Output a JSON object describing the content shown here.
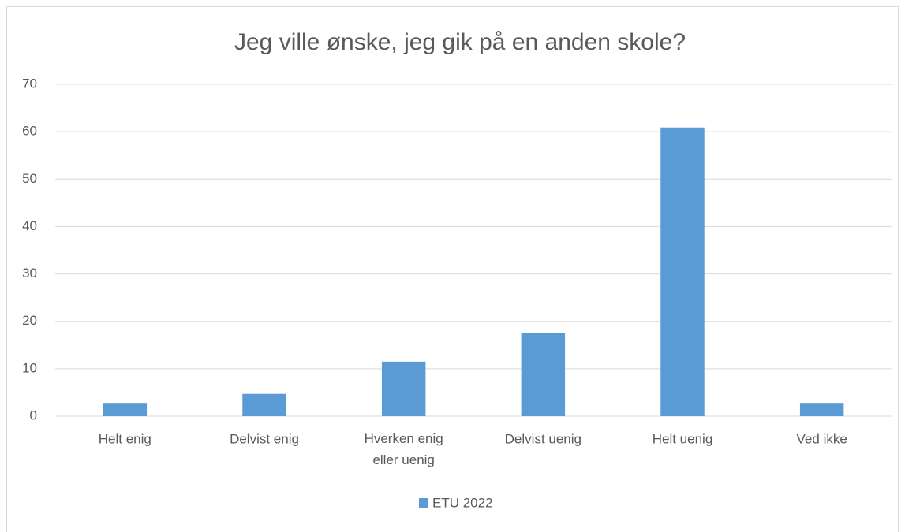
{
  "chart_data": {
    "type": "bar",
    "title": "Jeg ville ønske, jeg gik på en anden skole?",
    "categories": [
      "Helt enig",
      "Delvist enig",
      "Hverken enig eller uenig",
      "Delvist uenig",
      "Helt uenig",
      "Ved ikke"
    ],
    "series": [
      {
        "name": "ETU 2022",
        "color": "#5b9bd5",
        "values": [
          2.8,
          4.7,
          11.5,
          17.5,
          60.9,
          2.8
        ]
      }
    ],
    "ylim": [
      0,
      70
    ],
    "yticks": [
      0,
      10,
      20,
      30,
      40,
      50,
      60,
      70
    ],
    "grid": true,
    "legend": "bottom"
  }
}
